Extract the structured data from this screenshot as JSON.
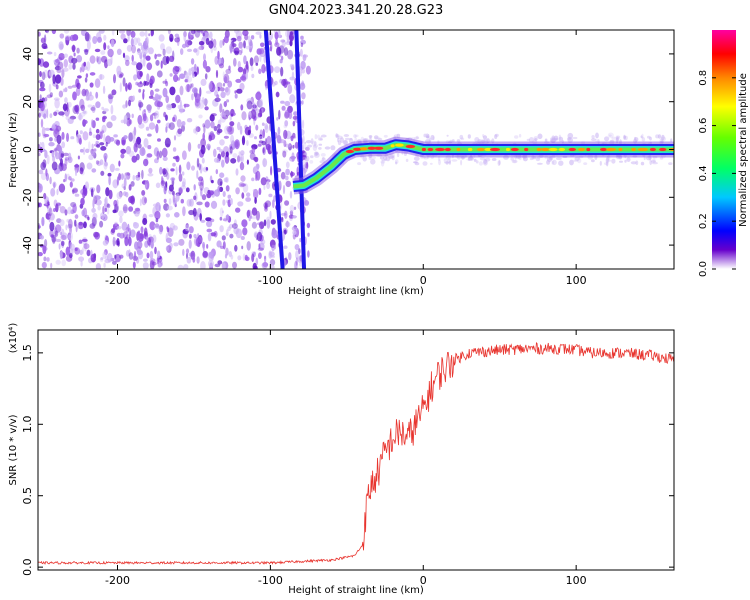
{
  "title": "GN04.2023.341.20.28.G23",
  "chart_data": [
    {
      "type": "heatmap",
      "xlabel": "Height of straight line (km)",
      "ylabel": "Frequency (Hz)",
      "xlim": [
        -252,
        164
      ],
      "ylim": [
        -50,
        50
      ],
      "xticks": [
        -200,
        -100,
        0,
        100
      ],
      "yticks": [
        -40,
        -20,
        0,
        20,
        40
      ],
      "colorbar": {
        "label": "Normalized spectral amplitude",
        "ticks": [
          "0.0",
          "0.2",
          "0.4",
          "0.6",
          "0.8"
        ],
        "range": [
          0,
          1
        ]
      },
      "ridge": {
        "name": "dominant frequency",
        "x": [
          -85,
          -78,
          -70,
          -60,
          -52,
          -45,
          -35,
          -25,
          -18,
          -10,
          0,
          30,
          60,
          90,
          120,
          164
        ],
        "y": [
          -15.5,
          -15,
          -12,
          -7,
          -2,
          0,
          0.5,
          0.5,
          2,
          1.5,
          0,
          0,
          0,
          0,
          0,
          0
        ]
      },
      "streaks": [
        {
          "x_start": -103,
          "x_end": -92,
          "y_start": 50,
          "y_end": -50
        },
        {
          "x_start": -83,
          "x_end": -78,
          "y_start": 50,
          "y_end": -50
        }
      ]
    },
    {
      "type": "line",
      "xlabel": "Height of straight line (km)",
      "ylabel": "SNR (10 * v/v)",
      "scale_label": "(x10⁴)",
      "xlim": [
        -252,
        164
      ],
      "ylim": [
        -0.02,
        1.66
      ],
      "xticks": [
        -200,
        -100,
        0,
        100
      ],
      "yticks": [
        "0.0",
        "0.5",
        "1.0",
        "1.5"
      ],
      "color": "#e8342e",
      "series": [
        {
          "x": [
            -252,
            -200,
            -150,
            -100,
            -60,
            -45,
            -40,
            -37,
            -35,
            -30,
            -25,
            -20,
            -15,
            -10,
            -5,
            0,
            5,
            10,
            20,
            30,
            50,
            70,
            90,
            100,
            110,
            130,
            150,
            164
          ],
          "y": [
            0.03,
            0.03,
            0.03,
            0.03,
            0.05,
            0.08,
            0.15,
            0.42,
            0.55,
            0.65,
            0.8,
            0.9,
            0.95,
            0.9,
            1.0,
            1.1,
            1.25,
            1.35,
            1.45,
            1.5,
            1.52,
            1.53,
            1.53,
            1.52,
            1.5,
            1.5,
            1.48,
            1.45
          ]
        }
      ]
    }
  ]
}
